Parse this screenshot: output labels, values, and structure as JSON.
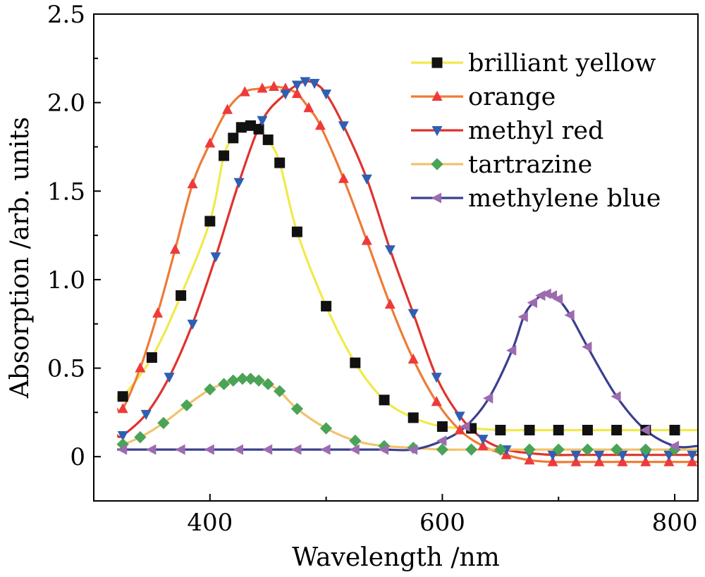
{
  "chart_data": {
    "type": "line",
    "xlabel": "Wavelength /nm",
    "ylabel": "Absorption /arb. units",
    "xlim": [
      300,
      820
    ],
    "ylim": [
      -0.25,
      2.5
    ],
    "x_ticks": [
      400,
      600,
      800
    ],
    "y_ticks": [
      0,
      0.5,
      1.0,
      1.5,
      2.0,
      2.5
    ],
    "x_tick_labels": [
      "400",
      "600",
      "800"
    ],
    "y_tick_labels": [
      "0",
      "0.5",
      "1.0",
      "1.5",
      "2.0",
      "2.5"
    ],
    "grid": false,
    "legend_position": "top-right",
    "series": [
      {
        "name": "brilliant yellow",
        "color": "#f0ea4a",
        "marker": "square",
        "marker_color": "#111111",
        "x": [
          325,
          350,
          375,
          400,
          412,
          420,
          427,
          435,
          442,
          450,
          460,
          475,
          500,
          525,
          550,
          575,
          600,
          625,
          650,
          675,
          700,
          725,
          750,
          775,
          800
        ],
        "y": [
          0.34,
          0.56,
          0.91,
          1.33,
          1.7,
          1.8,
          1.86,
          1.87,
          1.85,
          1.79,
          1.66,
          1.27,
          0.85,
          0.53,
          0.32,
          0.22,
          0.17,
          0.16,
          0.15,
          0.15,
          0.15,
          0.15,
          0.15,
          0.15,
          0.15
        ]
      },
      {
        "name": "orange",
        "color": "#ee7b36",
        "marker": "triangle-up",
        "marker_color": "#ee3a3a",
        "x": [
          325,
          340,
          355,
          370,
          385,
          400,
          415,
          430,
          445,
          455,
          465,
          475,
          485,
          495,
          515,
          535,
          555,
          575,
          595,
          615,
          635,
          655,
          675,
          695,
          715,
          735,
          755,
          775,
          795,
          815
        ],
        "y": [
          0.27,
          0.5,
          0.81,
          1.17,
          1.54,
          1.77,
          1.96,
          2.06,
          2.08,
          2.09,
          2.08,
          2.05,
          1.97,
          1.87,
          1.57,
          1.22,
          0.86,
          0.55,
          0.31,
          0.15,
          0.06,
          0.01,
          -0.02,
          -0.03,
          -0.03,
          -0.03,
          -0.03,
          -0.03,
          -0.03,
          -0.03
        ]
      },
      {
        "name": "methyl red",
        "color": "#e0322c",
        "marker": "triangle-down",
        "marker_color": "#2f5fb3",
        "x": [
          325,
          345,
          365,
          385,
          405,
          425,
          445,
          465,
          475,
          482,
          490,
          500,
          515,
          535,
          555,
          575,
          595,
          615,
          635,
          655,
          675,
          695,
          715,
          735,
          755,
          775,
          795,
          815
        ],
        "y": [
          0.12,
          0.24,
          0.45,
          0.75,
          1.13,
          1.55,
          1.9,
          2.05,
          2.1,
          2.12,
          2.11,
          2.05,
          1.87,
          1.57,
          1.17,
          0.81,
          0.45,
          0.23,
          0.1,
          0.04,
          0.02,
          0.01,
          0.01,
          0.01,
          0.01,
          0.01,
          0.01,
          0.01
        ]
      },
      {
        "name": "tartrazine",
        "color": "#f2c26b",
        "marker": "diamond",
        "marker_color": "#4aa356",
        "x": [
          325,
          340,
          360,
          380,
          400,
          412,
          420,
          428,
          435,
          442,
          450,
          460,
          475,
          500,
          525,
          550,
          575,
          600,
          625,
          650,
          675,
          700,
          725,
          750,
          775,
          800
        ],
        "y": [
          0.07,
          0.11,
          0.19,
          0.29,
          0.38,
          0.41,
          0.43,
          0.44,
          0.44,
          0.43,
          0.41,
          0.37,
          0.27,
          0.16,
          0.09,
          0.06,
          0.05,
          0.04,
          0.04,
          0.04,
          0.04,
          0.04,
          0.04,
          0.04,
          0.04,
          0.04
        ]
      },
      {
        "name": "methylene blue",
        "color": "#3a3f8f",
        "marker": "triangle-left",
        "marker_color": "#9c6bb0",
        "x": [
          325,
          350,
          375,
          400,
          425,
          450,
          475,
          500,
          525,
          550,
          575,
          600,
          620,
          640,
          660,
          670,
          678,
          685,
          690,
          695,
          700,
          710,
          725,
          750,
          775,
          800
        ],
        "y": [
          0.04,
          0.04,
          0.04,
          0.04,
          0.04,
          0.04,
          0.04,
          0.04,
          0.04,
          0.04,
          0.04,
          0.09,
          0.17,
          0.33,
          0.6,
          0.79,
          0.87,
          0.91,
          0.92,
          0.91,
          0.89,
          0.8,
          0.62,
          0.34,
          0.15,
          0.06
        ]
      }
    ]
  }
}
